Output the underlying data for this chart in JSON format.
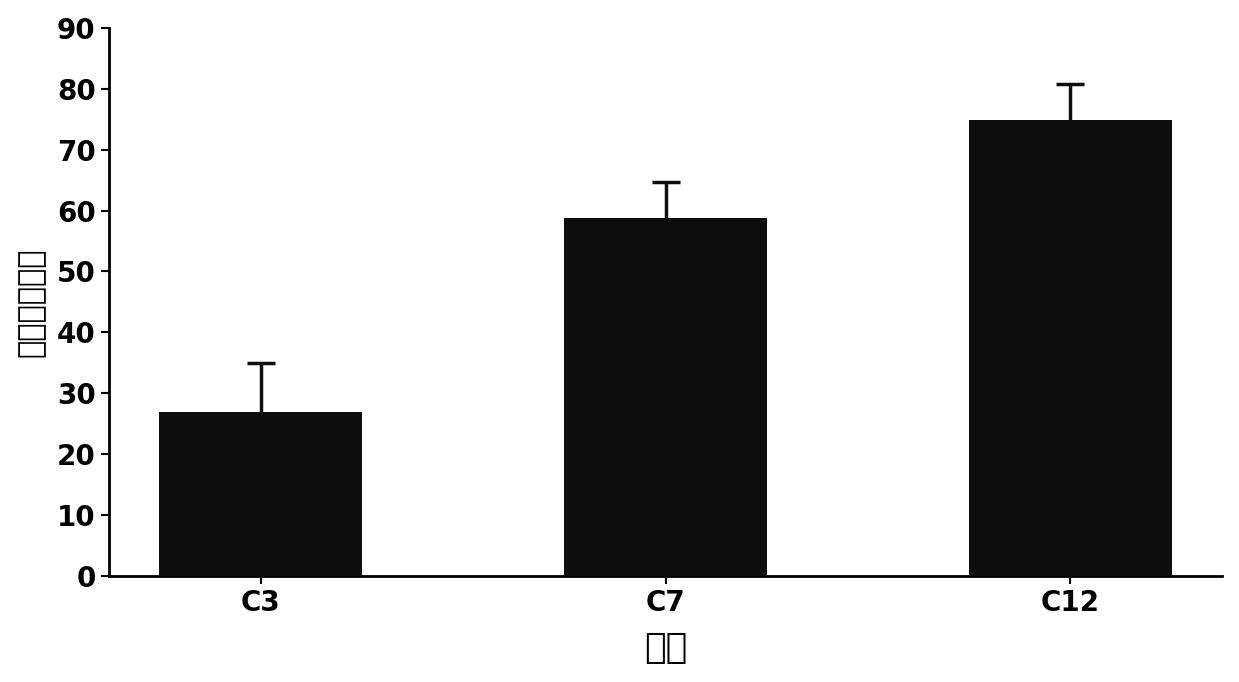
{
  "categories": [
    "C3",
    "C7",
    "C12"
  ],
  "values": [
    27.0,
    58.8,
    74.8
  ],
  "errors": [
    8.0,
    5.8,
    6.0
  ],
  "bar_color": "#0d0d0d",
  "bar_width": 0.5,
  "ylim": [
    0,
    90
  ],
  "yticks": [
    0,
    10,
    20,
    30,
    40,
    50,
    60,
    70,
    80,
    90
  ],
  "ylabel": "降解率（％）",
  "xlabel": "菌株",
  "background_color": "#ffffff",
  "tick_fontsize": 20,
  "xlabel_fontsize": 26,
  "ylabel_fontsize": 22,
  "error_capsize": 10,
  "error_linewidth": 2.5,
  "error_color": "#0d0d0d",
  "spine_linewidth": 2.0
}
